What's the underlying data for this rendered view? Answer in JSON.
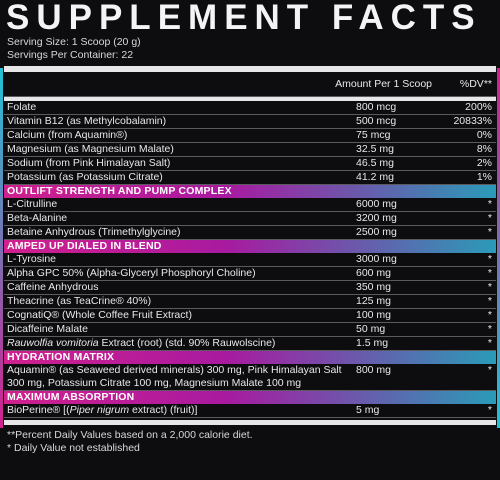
{
  "title": "SUPPLEMENT FACTS",
  "serving_size": "Serving Size: 1 Scoop (20 g)",
  "servings_per_container": "Servings Per Container: 22",
  "header": {
    "amount": "Amount Per 1 Scoop",
    "dv": "%DV**"
  },
  "vitamins": [
    {
      "name": "Folate",
      "amount": "800 mcg",
      "dv": "200%"
    },
    {
      "name": "Vitamin B12 (as Methylcobalamin)",
      "amount": "500 mcg",
      "dv": "20833%"
    },
    {
      "name": "Calcium (from Aquamin®)",
      "amount": "75 mcg",
      "dv": "0%"
    },
    {
      "name": "Magnesium (as Magnesium Malate)",
      "amount": "32.5 mg",
      "dv": "8%"
    },
    {
      "name": "Sodium (from Pink Himalayan Salt)",
      "amount": "46.5 mg",
      "dv": "2%"
    },
    {
      "name": "Potassium (as Potassium Citrate)",
      "amount": "41.2 mg",
      "dv": "1%"
    }
  ],
  "sections": [
    {
      "title": "OUTLIFT STRENGTH AND PUMP COMPLEX",
      "items": [
        {
          "name": "L-Citrulline",
          "amount": "6000 mg",
          "dv": "*"
        },
        {
          "name": "Beta-Alanine",
          "amount": "3200 mg",
          "dv": "*"
        },
        {
          "name": "Betaine Anhydrous (Trimethylglycine)",
          "amount": "2500 mg",
          "dv": "*"
        }
      ]
    },
    {
      "title": "AMPED UP DIALED IN BLEND",
      "items": [
        {
          "name": "L-Tyrosine",
          "amount": "3000 mg",
          "dv": "*"
        },
        {
          "name": "Alpha GPC 50% (Alpha-Glyceryl Phosphoryl Choline)",
          "amount": "600 mg",
          "dv": "*"
        },
        {
          "name": "Caffeine Anhydrous",
          "amount": "350 mg",
          "dv": "*"
        },
        {
          "name": "Theacrine (as TeaCrine® 40%)",
          "amount": "125 mg",
          "dv": "*"
        },
        {
          "name": "CognatiQ® (Whole Coffee Fruit Extract)",
          "amount": "100 mg",
          "dv": "*"
        },
        {
          "name": "Dicaffeine Malate",
          "amount": "50 mg",
          "dv": "*"
        },
        {
          "name_italic": "Rauwolfia vomitoria",
          "name_rest": " Extract (root) (std. 90% Rauwolscine)",
          "amount": "1.5 mg",
          "dv": "*"
        }
      ]
    },
    {
      "title": "HYDRATION MATRIX",
      "items": [
        {
          "name": "Aquamin® (as Seaweed derived minerals) 300 mg, Pink Himalayan Salt 300 mg, Potassium Citrate 100 mg, Magnesium Malate 100 mg",
          "amount": "800 mg",
          "dv": "*"
        }
      ]
    },
    {
      "title": "MAXIMUM ABSORPTION",
      "items": [
        {
          "name_pre": "BioPerine® [(",
          "name_italic": "Piper nigrum",
          "name_rest": " extract) (fruit)]",
          "amount": "5 mg",
          "dv": "*"
        }
      ]
    }
  ],
  "footnotes": [
    "**Percent Daily Values based on a 2,000 calorie diet.",
    "* Daily Value not established"
  ],
  "colors": {
    "background": "#0d0d0f",
    "section_pink": "#d0208e",
    "section_teal": "#2a9bb8",
    "text": "#e8e8ea"
  }
}
